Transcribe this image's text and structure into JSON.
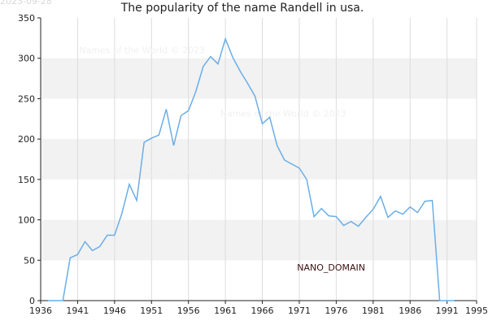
{
  "date_stamp": "2023-09-28",
  "chart_data": {
    "type": "line",
    "title": "The popularity of the name Randell in usa.",
    "xlabel": "",
    "ylabel": "",
    "xlim": [
      1936,
      1995
    ],
    "ylim": [
      0,
      350
    ],
    "x_ticks": [
      1936,
      1941,
      1946,
      1951,
      1956,
      1961,
      1966,
      1971,
      1976,
      1981,
      1986,
      1991,
      1995
    ],
    "y_ticks": [
      0,
      50,
      100,
      150,
      200,
      250,
      300,
      350
    ],
    "grid": true,
    "band_colors": [
      "#ffffff",
      "#f2f2f2"
    ],
    "line_color": "#6aaee8",
    "watermarks": [
      {
        "text": "Names of the World © 2023",
        "x": 1941.2,
        "y": 306
      },
      {
        "text": "Names of the World © 2023",
        "x": 1960.3,
        "y": 228
      },
      {
        "text": "Names of the World © 2023",
        "x": 1946.9,
        "y": 153
      }
    ],
    "annotation": {
      "text": "NANO_DOMAIN",
      "x": 1970.7,
      "y": 37
    },
    "series": [
      {
        "x": [
          1937,
          1938,
          1939,
          1940,
          1941,
          1942,
          1943,
          1944,
          1945,
          1946,
          1947,
          1948,
          1949,
          1950,
          1951,
          1952,
          1953,
          1954,
          1955,
          1956,
          1957,
          1958,
          1959,
          1960,
          1961,
          1962,
          1963,
          1964,
          1965,
          1966,
          1967,
          1968,
          1969,
          1970,
          1971,
          1972,
          1973,
          1974,
          1975,
          1976,
          1977,
          1978,
          1979,
          1980,
          1981,
          1982,
          1983,
          1984,
          1985,
          1986,
          1987,
          1988,
          1989,
          1990,
          1991,
          1992
        ],
        "values": [
          0,
          0,
          0,
          53,
          57,
          73,
          62,
          67,
          81,
          81,
          108,
          144,
          124,
          196,
          201,
          205,
          237,
          192,
          229,
          235,
          259,
          290,
          302,
          293,
          324,
          301,
          284,
          269,
          253,
          219,
          227,
          192,
          174,
          169,
          164,
          150,
          104,
          114,
          105,
          104,
          93,
          98,
          92,
          103,
          113,
          129,
          103,
          111,
          107,
          116,
          109,
          123,
          124,
          0,
          0,
          0
        ]
      }
    ]
  }
}
